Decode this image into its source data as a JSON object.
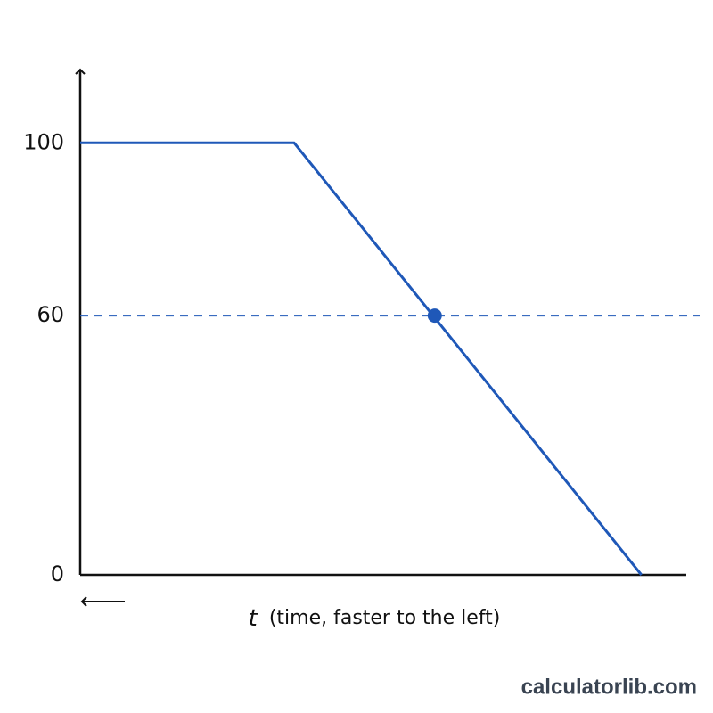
{
  "chart_data": {
    "type": "line",
    "x": [
      0,
      35.3,
      92.6
    ],
    "series": [
      {
        "color": "#1f58b8",
        "values": [
          100,
          100,
          0
        ]
      }
    ],
    "xlim": [
      0,
      100
    ],
    "ylim": [
      0,
      118
    ],
    "yticks": [
      0,
      60,
      100
    ],
    "hline": 60,
    "marker": {
      "x": 58.5,
      "y": 60
    },
    "x_label_symbol": "t",
    "x_label": "(time, faster to the left)",
    "watermark": "calculatorlib.com"
  }
}
